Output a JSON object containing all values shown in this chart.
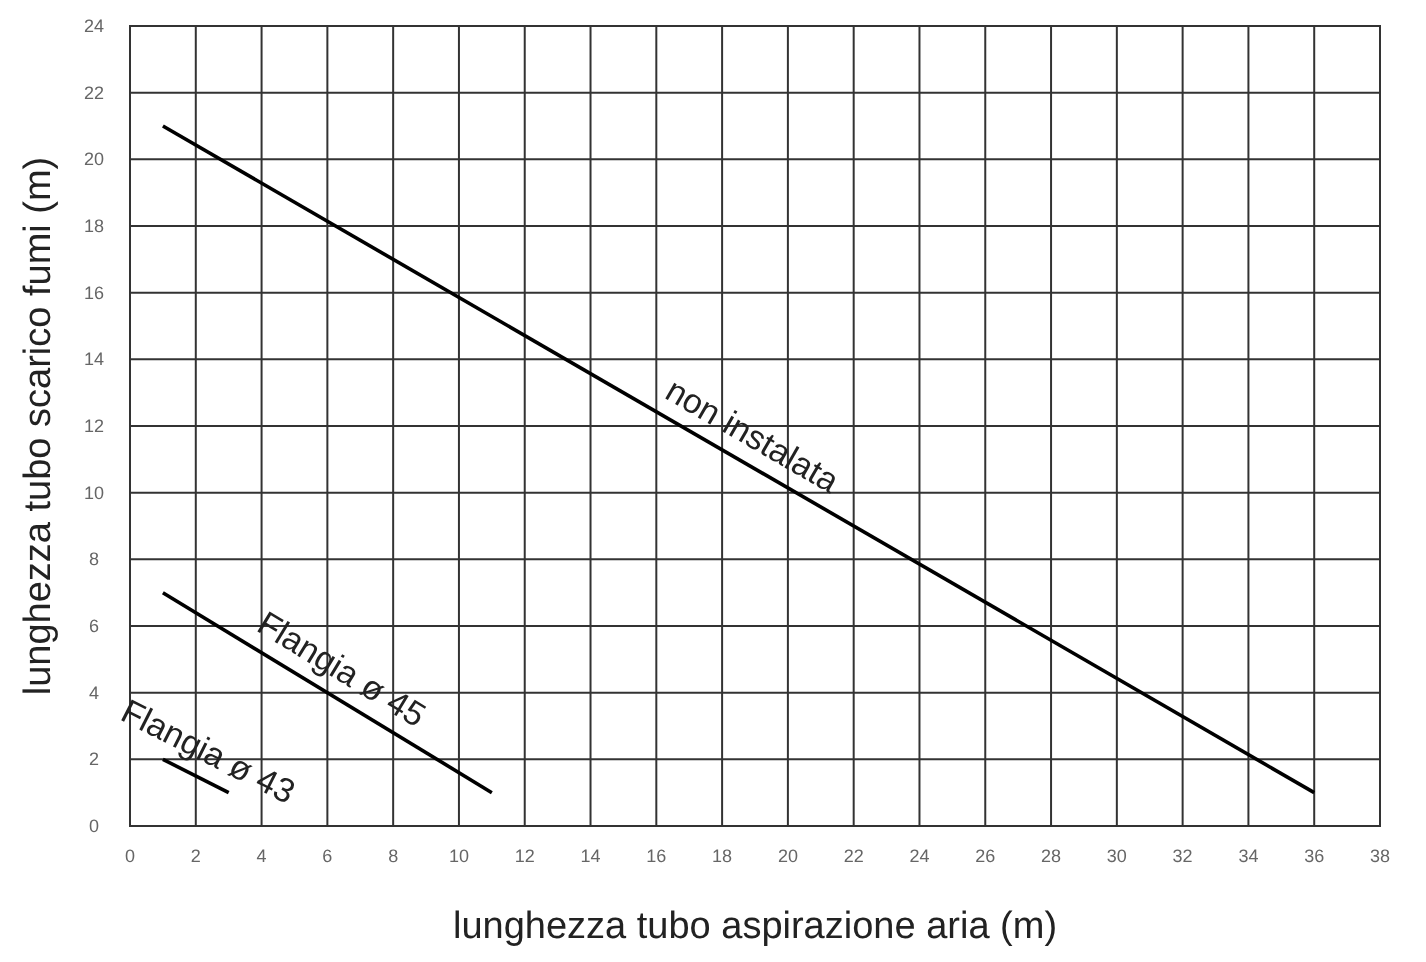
{
  "chart_data": {
    "type": "line",
    "xlabel": "lunghezza tubo aspirazione aria (m)",
    "ylabel": "lunghezza tubo scarico fumi (m)",
    "xlim": [
      0,
      38
    ],
    "xticks": [
      0,
      2,
      4,
      6,
      8,
      10,
      12,
      14,
      16,
      18,
      20,
      22,
      24,
      26,
      28,
      30,
      32,
      34,
      36,
      38
    ],
    "ylim": [
      0,
      24
    ],
    "yticks": [
      0,
      2,
      4,
      6,
      8,
      10,
      12,
      14,
      16,
      18,
      20,
      22,
      24
    ],
    "grid": true,
    "marker": "none",
    "line_style": "solid",
    "series": [
      {
        "name": "non instalata",
        "color": "#000000",
        "x": [
          1,
          36
        ],
        "values": [
          21,
          1
        ]
      },
      {
        "name": "Flangia ø 45",
        "color": "#000000",
        "x": [
          1,
          11
        ],
        "values": [
          7,
          1
        ]
      },
      {
        "name": "Flangia ø 43",
        "color": "#000000",
        "x": [
          1,
          3
        ],
        "values": [
          2,
          1
        ]
      }
    ]
  }
}
